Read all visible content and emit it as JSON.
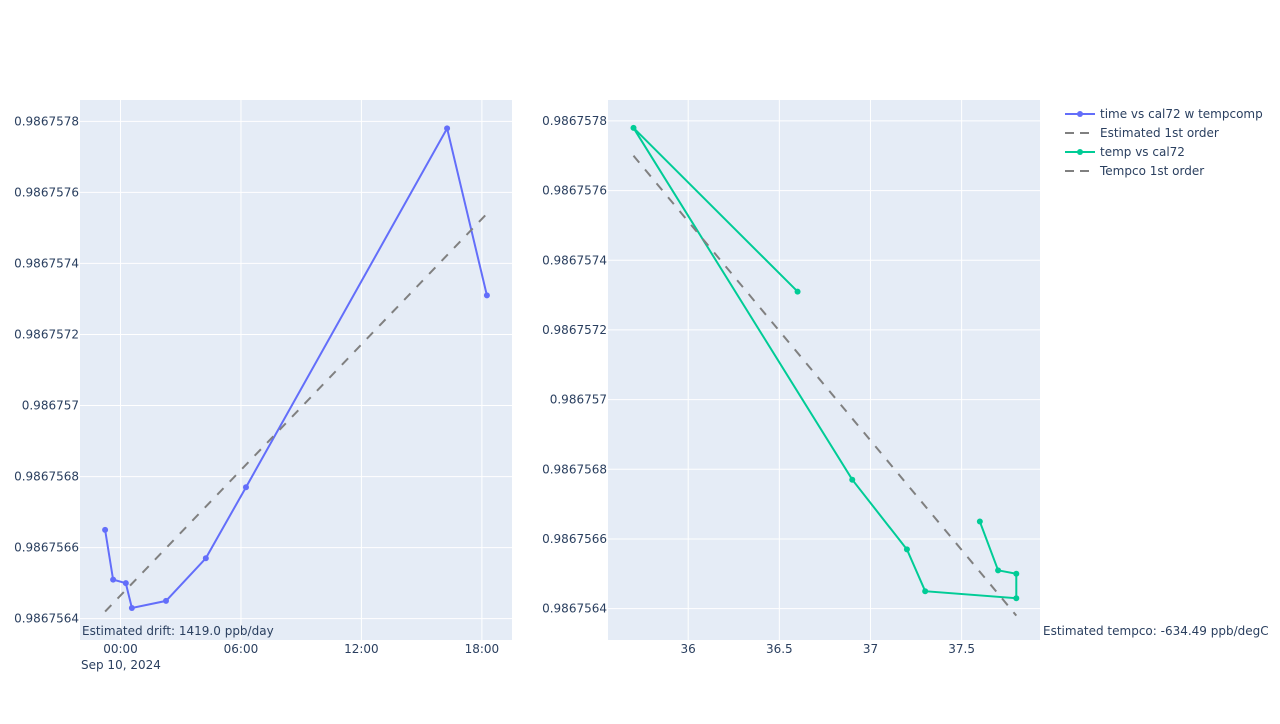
{
  "colors": {
    "series_time": "#636efa",
    "series_temp": "#00cc96",
    "fit": "#808080",
    "plot_bg": "#e5ecf6",
    "grid": "#ffffff",
    "text": "#2a3f5f"
  },
  "legend": {
    "placement": "top-right",
    "items": [
      {
        "label": "time vs cal72 w tempcomp",
        "style": "line+markers",
        "color": "#636efa"
      },
      {
        "label": "Estimated 1st order",
        "style": "dash",
        "color": "#808080"
      },
      {
        "label": "temp vs cal72",
        "style": "line+markers",
        "color": "#00cc96"
      },
      {
        "label": "Tempco 1st order",
        "style": "dash",
        "color": "#808080"
      }
    ]
  },
  "chart_data": [
    {
      "type": "line",
      "x_type": "date",
      "xlim": [
        "2024-09-09 21:59",
        "2024-09-10 19:30"
      ],
      "ylim": [
        0.98675634,
        0.98675786
      ],
      "grid": true,
      "x_ticks": [
        {
          "value": "2024-09-10 00:00",
          "label": "00:00"
        },
        {
          "value": "2024-09-10 06:00",
          "label": "06:00"
        },
        {
          "value": "2024-09-10 12:00",
          "label": "12:00"
        },
        {
          "value": "2024-09-10 18:00",
          "label": "18:00"
        }
      ],
      "x_tick_sublabel": "Sep 10, 2024",
      "y_ticks": [
        {
          "value": 0.9867564,
          "label": "0.9867564"
        },
        {
          "value": 0.9867566,
          "label": "0.9867566"
        },
        {
          "value": 0.9867568,
          "label": "0.9867568"
        },
        {
          "value": 0.986757,
          "label": "0.986757"
        },
        {
          "value": 0.9867572,
          "label": "0.9867572"
        },
        {
          "value": 0.9867574,
          "label": "0.9867574"
        },
        {
          "value": 0.9867576,
          "label": "0.9867576"
        },
        {
          "value": 0.9867578,
          "label": "0.9867578"
        }
      ],
      "series": [
        {
          "name": "time vs cal72 w tempcomp",
          "mode": "lines+markers",
          "color": "#636efa",
          "x": [
            "2024-09-09 23:14",
            "2024-09-09 23:38",
            "2024-09-10 00:16",
            "2024-09-10 00:34",
            "2024-09-10 02:16",
            "2024-09-10 04:15",
            "2024-09-10 06:15",
            "2024-09-10 16:16",
            "2024-09-10 18:15"
          ],
          "y": [
            0.98675665,
            0.98675651,
            0.9867565,
            0.98675643,
            0.98675645,
            0.98675657,
            0.98675677,
            0.98675778,
            0.98675731
          ]
        },
        {
          "name": "Estimated 1st order",
          "mode": "dash",
          "color": "#808080",
          "x": [
            "2024-09-09 23:14",
            "2024-09-10 18:15"
          ],
          "y": [
            0.98675642,
            0.98675754
          ]
        }
      ],
      "annotation": "Estimated drift:  1419.0 ppb/day"
    },
    {
      "type": "line",
      "x_type": "linear",
      "xlim": [
        35.56,
        37.93
      ],
      "ylim": [
        0.98675631,
        0.98675786
      ],
      "grid": true,
      "x_ticks": [
        {
          "value": 36,
          "label": "36"
        },
        {
          "value": 36.5,
          "label": "36.5"
        },
        {
          "value": 37,
          "label": "37"
        },
        {
          "value": 37.5,
          "label": "37.5"
        }
      ],
      "y_ticks": [
        {
          "value": 0.9867564,
          "label": "0.9867564"
        },
        {
          "value": 0.9867566,
          "label": "0.9867566"
        },
        {
          "value": 0.9867568,
          "label": "0.9867568"
        },
        {
          "value": 0.986757,
          "label": "0.986757"
        },
        {
          "value": 0.9867572,
          "label": "0.9867572"
        },
        {
          "value": 0.9867574,
          "label": "0.9867574"
        },
        {
          "value": 0.9867576,
          "label": "0.9867576"
        },
        {
          "value": 0.9867578,
          "label": "0.9867578"
        }
      ],
      "series": [
        {
          "name": "temp vs cal72",
          "mode": "lines+markers",
          "color": "#00cc96",
          "x": [
            37.6,
            37.7,
            37.8,
            37.8,
            37.3,
            37.2,
            36.9,
            35.7,
            36.6
          ],
          "y": [
            0.98675665,
            0.98675651,
            0.9867565,
            0.98675643,
            0.98675645,
            0.98675657,
            0.98675677,
            0.98675778,
            0.98675731
          ]
        },
        {
          "name": "Tempco 1st order",
          "mode": "dash",
          "color": "#808080",
          "x": [
            35.7,
            37.8
          ],
          "y": [
            0.9867577,
            0.98675638
          ]
        }
      ],
      "annotation": "Estimated tempco:  -634.49 ppb/degC"
    }
  ]
}
